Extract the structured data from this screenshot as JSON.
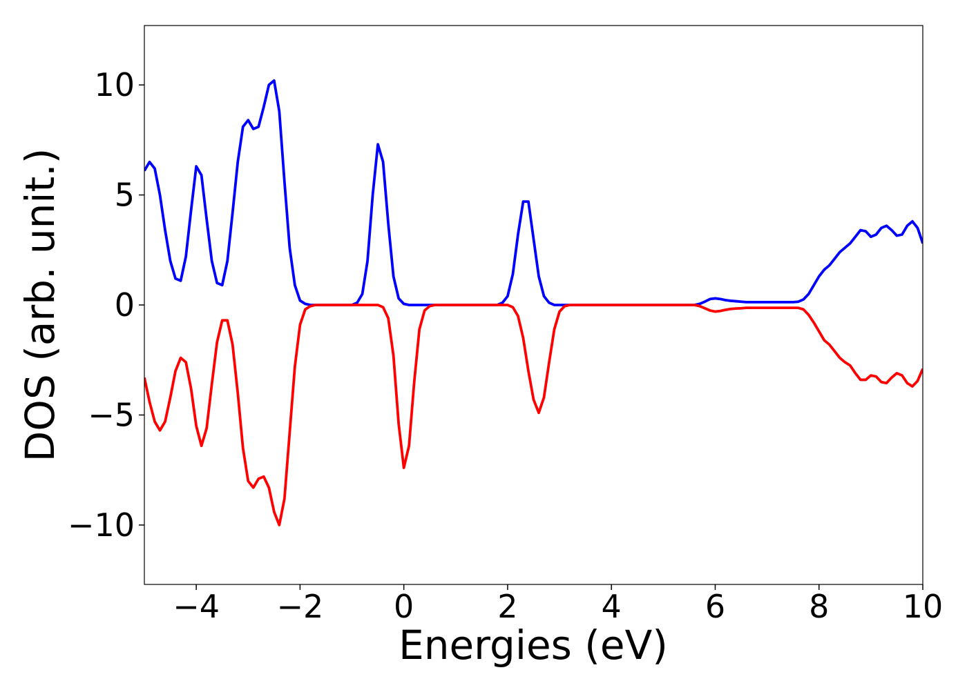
{
  "chart_data": {
    "type": "line",
    "xlabel": "Energies (eV)",
    "ylabel": "DOS (arb. unit.)",
    "xlim": [
      -5,
      10
    ],
    "ylim": [
      -12.7,
      12.7
    ],
    "xticks": [
      {
        "value": -4,
        "label": "−4"
      },
      {
        "value": -2,
        "label": "−2"
      },
      0,
      2,
      4,
      6,
      8,
      10
    ],
    "yticks": [
      {
        "value": -10,
        "label": "−10"
      },
      {
        "value": -5,
        "label": "−5"
      },
      0,
      5,
      10
    ],
    "x": [
      -5,
      -4.9,
      -4.8,
      -4.7,
      -4.6,
      -4.5,
      -4.4,
      -4.3,
      -4.2,
      -4.1,
      -4,
      -3.9,
      -3.8,
      -3.7,
      -3.6,
      -3.5,
      -3.4,
      -3.3,
      -3.2,
      -3.1,
      -3,
      -2.9,
      -2.8,
      -2.7,
      -2.6,
      -2.5,
      -2.4,
      -2.3,
      -2.2,
      -2.1,
      -2,
      -1.9,
      -1.8,
      -1.7,
      -1.6,
      -1.5,
      -1.4,
      -1.3,
      -1.2,
      -1.1,
      -1,
      -0.9,
      -0.8,
      -0.7,
      -0.6,
      -0.5,
      -0.4,
      -0.3,
      -0.2,
      -0.1,
      0,
      0.1,
      0.2,
      0.3,
      0.4,
      0.5,
      0.6,
      0.7,
      0.8,
      0.9,
      1,
      1.1,
      1.2,
      1.3,
      1.4,
      1.5,
      1.6,
      1.7,
      1.8,
      1.9,
      2,
      2.1,
      2.2,
      2.3,
      2.4,
      2.5,
      2.6,
      2.7,
      2.8,
      2.9,
      3,
      3.1,
      3.2,
      3.3,
      3.4,
      3.5,
      3.6,
      3.7,
      3.8,
      3.9,
      4,
      4.1,
      4.2,
      4.3,
      4.4,
      4.5,
      4.6,
      4.7,
      4.8,
      4.9,
      5,
      5.1,
      5.2,
      5.3,
      5.4,
      5.5,
      5.6,
      5.7,
      5.8,
      5.9,
      6,
      6.1,
      6.2,
      6.3,
      6.4,
      6.5,
      6.6,
      6.7,
      6.8,
      6.9,
      7,
      7.1,
      7.2,
      7.3,
      7.4,
      7.5,
      7.6,
      7.7,
      7.8,
      7.9,
      8,
      8.1,
      8.2,
      8.3,
      8.4,
      8.5,
      8.6,
      8.7,
      8.8,
      8.9,
      9,
      9.1,
      9.2,
      9.3,
      9.4,
      9.5,
      9.6,
      9.7,
      9.8,
      9.9,
      10
    ],
    "series": [
      {
        "color": "#0000ff",
        "values": [
          6.1,
          6.5,
          6.2,
          5.0,
          3.4,
          2.0,
          1.2,
          1.1,
          2.2,
          4.3,
          6.3,
          5.9,
          3.9,
          2.0,
          1.0,
          0.9,
          2.0,
          4.2,
          6.5,
          8.1,
          8.4,
          8.0,
          8.1,
          9.0,
          10.0,
          10.2,
          8.8,
          5.6,
          2.6,
          0.9,
          0.2,
          0.05,
          0,
          0,
          0,
          0,
          0,
          0,
          0,
          0,
          0,
          0.1,
          0.5,
          2.0,
          5.0,
          7.3,
          6.5,
          3.7,
          1.3,
          0.3,
          0.05,
          0,
          0,
          0,
          0,
          0,
          0,
          0,
          0,
          0,
          0,
          0,
          0,
          0,
          0,
          0,
          0,
          0,
          0,
          0.1,
          0.4,
          1.4,
          3.2,
          4.7,
          4.7,
          3.0,
          1.3,
          0.4,
          0.1,
          0,
          0,
          0,
          0,
          0,
          0,
          0,
          0,
          0,
          0,
          0,
          0,
          0,
          0,
          0,
          0,
          0,
          0,
          0,
          0,
          0,
          0,
          0,
          0,
          0,
          0,
          0,
          0,
          0.05,
          0.15,
          0.27,
          0.3,
          0.27,
          0.22,
          0.19,
          0.17,
          0.15,
          0.13,
          0.13,
          0.13,
          0.13,
          0.13,
          0.13,
          0.13,
          0.13,
          0.13,
          0.13,
          0.15,
          0.25,
          0.5,
          0.9,
          1.3,
          1.6,
          1.8,
          2.1,
          2.4,
          2.6,
          2.8,
          3.1,
          3.4,
          3.35,
          3.1,
          3.2,
          3.5,
          3.6,
          3.4,
          3.15,
          3.2,
          3.6,
          3.8,
          3.5,
          2.8
        ]
      },
      {
        "color": "#ff0000",
        "values": [
          -3.3,
          -4.4,
          -5.3,
          -5.7,
          -5.3,
          -4.2,
          -3.0,
          -2.4,
          -2.6,
          -3.8,
          -5.5,
          -6.4,
          -5.6,
          -3.6,
          -1.7,
          -0.7,
          -0.7,
          -1.8,
          -4.0,
          -6.5,
          -8.0,
          -8.3,
          -7.9,
          -7.8,
          -8.3,
          -9.4,
          -10.0,
          -8.8,
          -5.8,
          -2.8,
          -0.9,
          -0.2,
          -0.05,
          0,
          0,
          0,
          0,
          0,
          0,
          0,
          0,
          0,
          0,
          0,
          0,
          0,
          -0.1,
          -0.6,
          -2.3,
          -5.4,
          -7.4,
          -6.4,
          -3.5,
          -1.1,
          -0.25,
          -0.05,
          0,
          0,
          0,
          0,
          0,
          0,
          0,
          0,
          0,
          0,
          0,
          0,
          0,
          0,
          0,
          -0.1,
          -0.5,
          -1.5,
          -3.0,
          -4.3,
          -4.9,
          -4.2,
          -2.6,
          -1.1,
          -0.3,
          -0.05,
          0,
          0,
          0,
          0,
          0,
          0,
          0,
          0,
          0,
          0,
          0,
          0,
          0,
          0,
          0,
          0,
          0,
          0,
          0,
          0,
          0,
          0,
          0,
          0,
          0,
          -0.05,
          -0.15,
          -0.25,
          -0.3,
          -0.27,
          -0.22,
          -0.18,
          -0.16,
          -0.15,
          -0.13,
          -0.13,
          -0.13,
          -0.13,
          -0.13,
          -0.13,
          -0.13,
          -0.13,
          -0.13,
          -0.13,
          -0.13,
          -0.2,
          -0.45,
          -0.8,
          -1.2,
          -1.6,
          -1.8,
          -2.1,
          -2.4,
          -2.6,
          -2.75,
          -3.1,
          -3.4,
          -3.4,
          -3.2,
          -3.25,
          -3.5,
          -3.55,
          -3.3,
          -3.1,
          -3.2,
          -3.55,
          -3.7,
          -3.45,
          -2.9
        ]
      }
    ]
  }
}
